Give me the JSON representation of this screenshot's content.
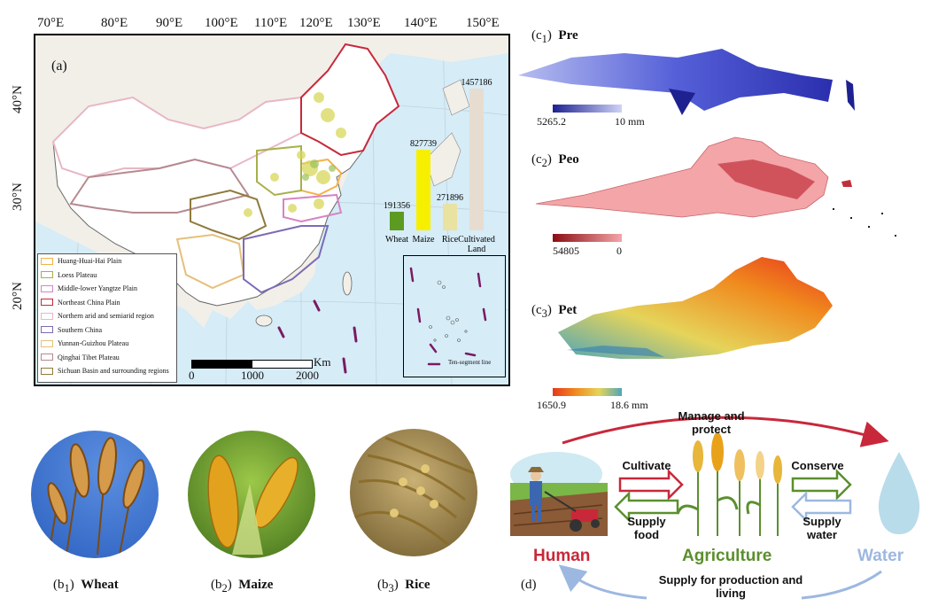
{
  "map": {
    "panel_label": "(a)",
    "lon_ticks": [
      "70°E",
      "80°E",
      "90°E",
      "100°E",
      "110°E",
      "120°E",
      "130°E",
      "140°E",
      "150°E"
    ],
    "lat_ticks": [
      "40°N",
      "30°N",
      "20°N"
    ],
    "scale": {
      "unit": "Km",
      "ticks": [
        "0",
        "1000",
        "2000"
      ]
    },
    "inset_label": "Ten-segment line",
    "legend": [
      {
        "label": "Huang-Huai-Hai Plain",
        "color": "#f4b24a"
      },
      {
        "label": "Loess Plateau",
        "color": "#a7b04a"
      },
      {
        "label": "Middle-lower Yangtze Plain",
        "color": "#d684c4"
      },
      {
        "label": "Northeast China Plain",
        "color": "#c8283a"
      },
      {
        "label": "Northern arid and semiarid region",
        "color": "#e8b7c4"
      },
      {
        "label": "Southern China",
        "color": "#7d6bb5"
      },
      {
        "label": "Yunnan-Guizhou Plateau",
        "color": "#e5c07b"
      },
      {
        "label": "Qinghai Tibet Plateau",
        "color": "#b58a8f"
      },
      {
        "label": "Sichuan Basin and surrounding regions",
        "color": "#8f7a3c"
      }
    ]
  },
  "chart_data": {
    "type": "bar",
    "categories": [
      "Wheat",
      "Maize",
      "Rice",
      "Cultivated Land"
    ],
    "values": [
      191356,
      827739,
      271896,
      1457186
    ],
    "value_labels": [
      "191356",
      "827739",
      "271896",
      "1457186"
    ],
    "colors": [
      "#5c9a22",
      "#f6f000",
      "#e9e2a0",
      "#e6ddd0"
    ]
  },
  "climate": [
    {
      "label_prefix": "(c",
      "label_sub": "1",
      "label_suffix": ")",
      "name": "Pre",
      "cb_min": "5265.2",
      "cb_max": "10 mm"
    },
    {
      "label_prefix": "(c",
      "label_sub": "2",
      "label_suffix": ")",
      "name": "Peo",
      "cb_min": "54805",
      "cb_max": "0"
    },
    {
      "label_prefix": "(c",
      "label_sub": "3",
      "label_suffix": ")",
      "name": "Pet",
      "cb_min": "1650.9",
      "cb_max": "18.6 mm"
    }
  ],
  "crops": [
    {
      "label_prefix": "(b",
      "label_sub": "1",
      "label_suffix": ")",
      "name": "Wheat"
    },
    {
      "label_prefix": "(b",
      "label_sub": "2",
      "label_suffix": ")",
      "name": "Maize"
    },
    {
      "label_prefix": "(b",
      "label_sub": "3",
      "label_suffix": ")",
      "name": "Rice"
    }
  ],
  "diagram": {
    "panel_label": "(d)",
    "human": "Human",
    "agriculture": "Agriculture",
    "water": "Water",
    "manage_protect": "Manage and protect",
    "cultivate": "Cultivate",
    "supply_food": "Supply food",
    "conserve": "Conserve",
    "supply_water": "Supply water",
    "supply_production": "Supply for production and living",
    "colors": {
      "human": "#c8283a",
      "agriculture": "#5b8f2e",
      "water": "#9db8e0"
    }
  }
}
